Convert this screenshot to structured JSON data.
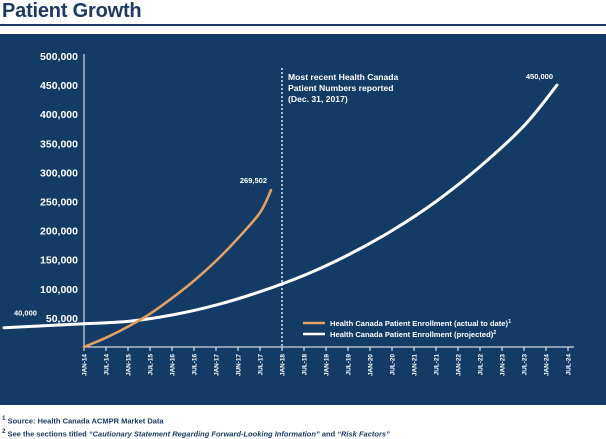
{
  "page": {
    "title": "Patient Growth"
  },
  "chart_data": {
    "type": "line",
    "title": "",
    "xlabel": "",
    "ylabel": "",
    "ylim": [
      0,
      500000
    ],
    "y_ticks": [
      50000,
      100000,
      150000,
      200000,
      250000,
      300000,
      350000,
      400000,
      450000,
      500000
    ],
    "y_tick_labels": [
      "50,000",
      "100,000",
      "150,000",
      "200,000",
      "250,000",
      "300,000",
      "350,000",
      "400,000",
      "450,000",
      "500,000"
    ],
    "x_tick_labels": [
      "JAN-14",
      "JUL-14",
      "JAN-15",
      "JUL-15",
      "JAN-16",
      "JUL-16",
      "JAN-17",
      "JUN-17",
      "JUL-17",
      "JAN-18",
      "JUL-18",
      "JAN-19",
      "JUL-19",
      "JAN-20",
      "JUL-20",
      "JAN-21",
      "JUL-21",
      "JAN-22",
      "JUL-22",
      "JAN-23",
      "JUL-23",
      "JAN-24",
      "JUL-24"
    ],
    "grid": false,
    "legend_position": "bottom-right",
    "series": [
      {
        "name": "Health Canada Patient Enrollment (actual to date)",
        "footnote_mark": "1",
        "color": "#e0a060",
        "x": [
          0,
          1,
          2,
          3,
          4,
          5,
          6,
          7,
          8,
          8.5
        ],
        "values": [
          0,
          16000,
          35000,
          57000,
          84000,
          114000,
          148000,
          187000,
          231000,
          269502
        ]
      },
      {
        "name": "Health Canada Patient Enrollment (projected)",
        "footnote_mark": "2",
        "color": "#ffffff",
        "x": [
          0,
          2,
          4,
          6,
          8,
          10,
          12,
          14,
          16,
          18,
          20,
          21.5
        ],
        "values": [
          40000,
          44000,
          55000,
          72000,
          95000,
          123000,
          158000,
          200000,
          250000,
          310000,
          380000,
          450000
        ]
      }
    ],
    "vline": {
      "x": 9,
      "label": [
        "Most recent Health Canada",
        "Patient Numbers reported",
        "(Dec. 31, 2017)"
      ]
    },
    "annotations": [
      {
        "text": "269,502",
        "series": 0
      },
      {
        "text": "40,000",
        "series": 1
      },
      {
        "text": "450,000",
        "series": 1
      }
    ]
  },
  "footnotes": [
    {
      "mark": "1",
      "text": "Source: Health Canada ACMPR Market Data"
    },
    {
      "mark": "2",
      "prefix": "See the sections titled",
      "ref1": "“Cautionary Statement Regarding Forward-Looking Information”",
      "joiner": "and",
      "ref2": "“Risk Factors”"
    }
  ]
}
